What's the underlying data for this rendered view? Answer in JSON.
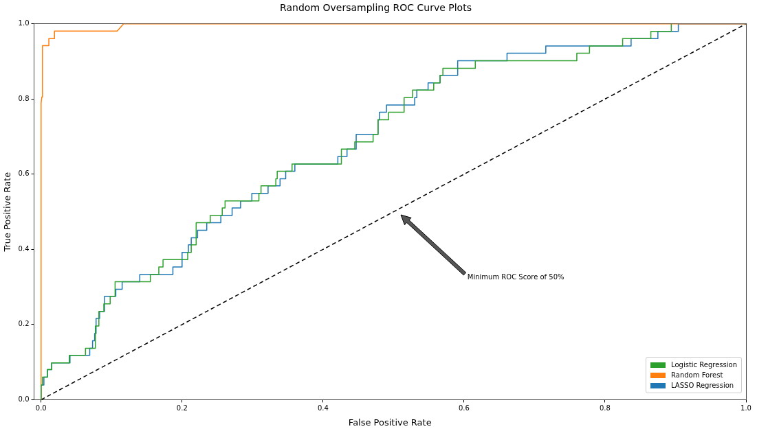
{
  "chart_data": {
    "type": "line",
    "title": "Random Oversampling ROC Curve Plots",
    "xlabel": "False Positive Rate",
    "ylabel": "True Positive Rate",
    "xlim": [
      -0.01,
      1.0
    ],
    "ylim": [
      0,
      1
    ],
    "xticks": [
      {
        "value": 0,
        "label": "0.0"
      },
      0.2,
      0.4,
      0.6,
      0.8,
      {
        "value": 1,
        "label": "1.0"
      }
    ],
    "yticks": [
      {
        "value": 0,
        "label": "0.0"
      },
      0.2,
      0.4,
      0.6,
      0.8,
      {
        "value": 1,
        "label": "1.0"
      }
    ],
    "grid": false,
    "legend": "bottom right",
    "annotations": [
      "Minimum ROC Score of 50%"
    ],
    "series": [
      {
        "name": "Logistic Regression",
        "color": "#2ca02c",
        "x": [
          0,
          0,
          0.002,
          0.002,
          0.009,
          0.009,
          0.015,
          0.015,
          0.04,
          0.04,
          0.063,
          0.063,
          0.077,
          0.077,
          0.082,
          0.082,
          0.089,
          0.089,
          0.098,
          0.098,
          0.105,
          0.105,
          0.155,
          0.155,
          0.167,
          0.167,
          0.173,
          0.173,
          0.208,
          0.208,
          0.213,
          0.213,
          0.22,
          0.22,
          0.24,
          0.24,
          0.257,
          0.257,
          0.261,
          0.261,
          0.309,
          0.309,
          0.312,
          0.312,
          0.333,
          0.333,
          0.335,
          0.335,
          0.356,
          0.356,
          0.426,
          0.426,
          0.445,
          0.445,
          0.471,
          0.471,
          0.478,
          0.478,
          0.493,
          0.493,
          0.515,
          0.515,
          0.527,
          0.527,
          0.557,
          0.557,
          0.566,
          0.566,
          0.57,
          0.57,
          0.616,
          0.616,
          0.76,
          0.76,
          0.778,
          0.778,
          0.825,
          0.825,
          0.865,
          0.865,
          0.894,
          0.894
        ],
        "values": [
          0,
          0.039,
          0.039,
          0.06,
          0.06,
          0.08,
          0.08,
          0.098,
          0.098,
          0.118,
          0.118,
          0.137,
          0.137,
          0.196,
          0.196,
          0.235,
          0.235,
          0.255,
          0.255,
          0.275,
          0.275,
          0.314,
          0.314,
          0.333,
          0.333,
          0.353,
          0.353,
          0.373,
          0.373,
          0.392,
          0.392,
          0.412,
          0.412,
          0.471,
          0.471,
          0.49,
          0.49,
          0.51,
          0.51,
          0.529,
          0.529,
          0.549,
          0.549,
          0.569,
          0.569,
          0.588,
          0.588,
          0.608,
          0.608,
          0.627,
          0.627,
          0.667,
          0.667,
          0.686,
          0.686,
          0.706,
          0.706,
          0.745,
          0.745,
          0.765,
          0.765,
          0.804,
          0.804,
          0.824,
          0.824,
          0.843,
          0.843,
          0.863,
          0.863,
          0.882,
          0.882,
          0.902,
          0.902,
          0.922,
          0.922,
          0.941,
          0.941,
          0.961,
          0.961,
          0.98,
          0.98,
          1
        ]
      },
      {
        "name": "Random Forest",
        "color": "#ff7f0e",
        "x": [
          0,
          0,
          0.001,
          0.002,
          0.002,
          0.011,
          0.011,
          0.019,
          0.019,
          0.108,
          0.117,
          1
        ],
        "values": [
          0,
          0.789,
          0.805,
          0.805,
          0.942,
          0.942,
          0.961,
          0.961,
          0.981,
          0.981,
          1,
          1
        ]
      },
      {
        "name": "LASSO Regression",
        "color": "#1f77b4",
        "x": [
          0,
          0,
          0.004,
          0.004,
          0.009,
          0.009,
          0.015,
          0.015,
          0.041,
          0.041,
          0.069,
          0.069,
          0.073,
          0.073,
          0.076,
          0.076,
          0.078,
          0.078,
          0.083,
          0.083,
          0.09,
          0.09,
          0.106,
          0.106,
          0.115,
          0.115,
          0.14,
          0.14,
          0.187,
          0.187,
          0.2,
          0.2,
          0.209,
          0.209,
          0.213,
          0.213,
          0.222,
          0.222,
          0.235,
          0.235,
          0.255,
          0.255,
          0.271,
          0.271,
          0.283,
          0.283,
          0.299,
          0.299,
          0.322,
          0.322,
          0.339,
          0.339,
          0.347,
          0.347,
          0.36,
          0.36,
          0.421,
          0.421,
          0.434,
          0.434,
          0.447,
          0.447,
          0.478,
          0.478,
          0.48,
          0.48,
          0.49,
          0.49,
          0.53,
          0.53,
          0.533,
          0.533,
          0.549,
          0.549,
          0.566,
          0.566,
          0.591,
          0.591,
          0.661,
          0.661,
          0.716,
          0.716,
          0.837,
          0.837,
          0.875,
          0.875,
          0.904,
          0.904,
          1
        ],
        "values": [
          0,
          0.039,
          0.039,
          0.06,
          0.06,
          0.08,
          0.08,
          0.098,
          0.098,
          0.118,
          0.118,
          0.137,
          0.137,
          0.157,
          0.157,
          0.176,
          0.176,
          0.216,
          0.216,
          0.235,
          0.235,
          0.275,
          0.275,
          0.294,
          0.294,
          0.314,
          0.314,
          0.333,
          0.333,
          0.353,
          0.353,
          0.392,
          0.392,
          0.412,
          0.412,
          0.431,
          0.431,
          0.451,
          0.451,
          0.471,
          0.471,
          0.49,
          0.49,
          0.51,
          0.51,
          0.529,
          0.529,
          0.549,
          0.549,
          0.569,
          0.569,
          0.588,
          0.588,
          0.608,
          0.608,
          0.627,
          0.627,
          0.647,
          0.647,
          0.667,
          0.667,
          0.706,
          0.706,
          0.745,
          0.745,
          0.765,
          0.765,
          0.784,
          0.784,
          0.804,
          0.804,
          0.824,
          0.824,
          0.843,
          0.843,
          0.863,
          0.863,
          0.902,
          0.902,
          0.922,
          0.922,
          0.941,
          0.941,
          0.961,
          0.961,
          0.98,
          0.98,
          1,
          1
        ]
      },
      {
        "color": "#000000",
        "line_style": "dashed",
        "x": [
          0,
          1
        ],
        "values": [
          0,
          1
        ]
      }
    ]
  }
}
